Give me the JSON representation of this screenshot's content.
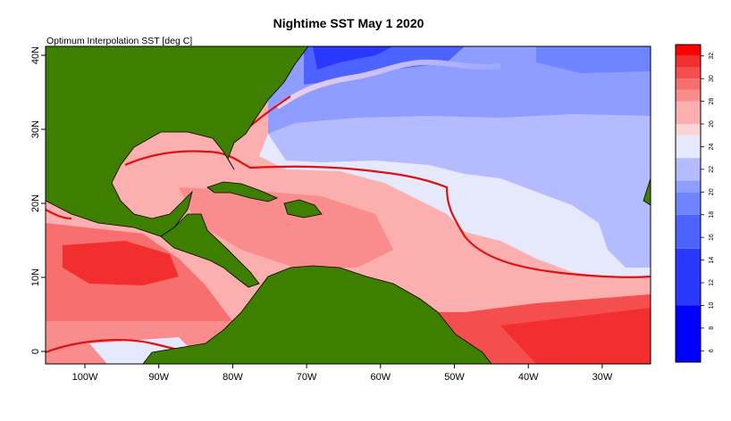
{
  "title": "Nightime SST May 1 2020",
  "subtitle": "Optimum Interpolation SST [deg C]",
  "map": {
    "x_ticks": [
      {
        "lon": -100,
        "label": "100W"
      },
      {
        "lon": -90,
        "label": "90W"
      },
      {
        "lon": -80,
        "label": "80W"
      },
      {
        "lon": -70,
        "label": "70W"
      },
      {
        "lon": -60,
        "label": "60W"
      },
      {
        "lon": -50,
        "label": "50W"
      },
      {
        "lon": -40,
        "label": "40W"
      },
      {
        "lon": -30,
        "label": "30W"
      }
    ],
    "y_ticks": [
      {
        "lat": 0,
        "label": "0"
      },
      {
        "lat": 10,
        "label": "10N"
      },
      {
        "lat": 20,
        "label": "20N"
      },
      {
        "lat": 30,
        "label": "30N"
      },
      {
        "lat": 40,
        "label": "40N"
      }
    ],
    "land_color": "#3f7f00",
    "contour_color": "#dd1111"
  },
  "colorbar": {
    "min": 5,
    "max": 33,
    "ticks": [
      "6",
      "8",
      "10",
      "12",
      "14",
      "16",
      "18",
      "20",
      "22",
      "24",
      "26",
      "28",
      "30",
      "32"
    ],
    "bands": [
      {
        "from": 5,
        "to": 10,
        "color": "#0000ff"
      },
      {
        "from": 10,
        "to": 15,
        "color": "#2a37ff"
      },
      {
        "from": 15,
        "to": 18,
        "color": "#4c63ff"
      },
      {
        "from": 18,
        "to": 20,
        "color": "#6f84ff"
      },
      {
        "from": 20,
        "to": 21,
        "color": "#8e9dff"
      },
      {
        "from": 21,
        "to": 23,
        "color": "#b4bcff"
      },
      {
        "from": 23,
        "to": 25,
        "color": "#e6e8fb"
      },
      {
        "from": 25,
        "to": 26,
        "color": "#fbd5d5"
      },
      {
        "from": 26,
        "to": 28,
        "color": "#fbafaf"
      },
      {
        "from": 28,
        "to": 29,
        "color": "#f98c8c"
      },
      {
        "from": 29,
        "to": 30,
        "color": "#f76f6f"
      },
      {
        "from": 30,
        "to": 31,
        "color": "#f54e4e"
      },
      {
        "from": 31,
        "to": 32,
        "color": "#f22e2e"
      },
      {
        "from": 32,
        "to": 33,
        "color": "#ff0000"
      }
    ]
  }
}
